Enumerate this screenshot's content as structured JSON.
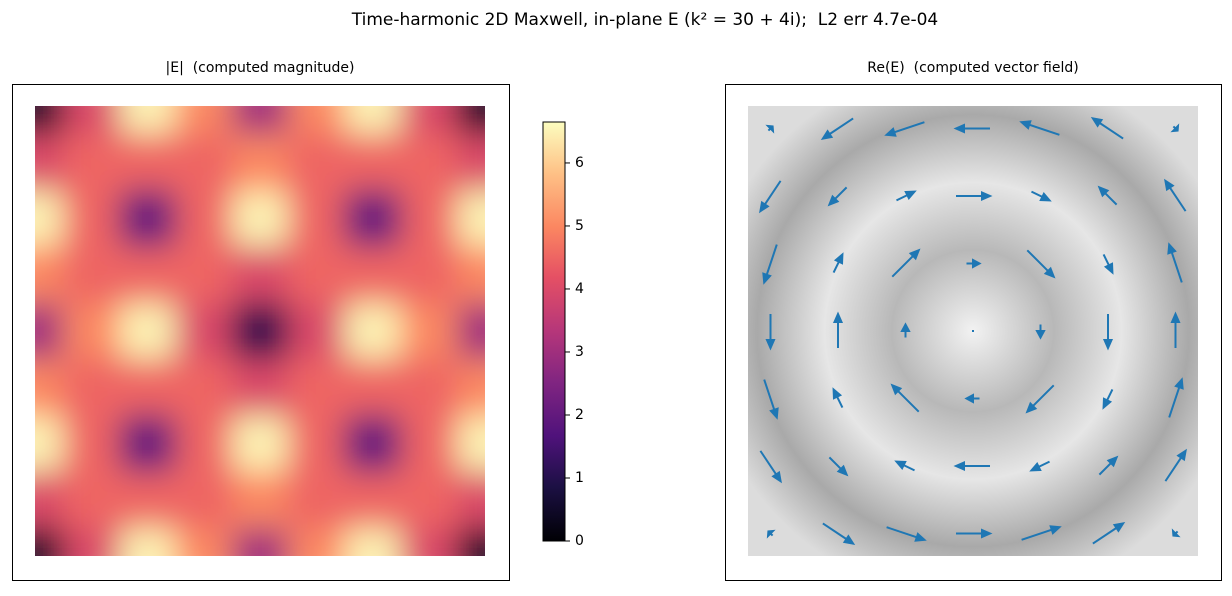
{
  "title": "Time-harmonic 2D Maxwell, in-plane E (k² = 30 + 4i);  L2 err 4.7e-04",
  "chart_data": [
    {
      "type": "heatmap",
      "title": "|E|  (computed magnitude)",
      "colormap": "magma",
      "clim": [
        0,
        6.65
      ],
      "cticks": [
        0,
        1,
        2,
        3,
        4,
        5,
        6
      ],
      "values": [
        [
          0.5,
          4,
          6.5,
          5,
          3,
          5,
          6.5,
          4,
          0.5
        ],
        [
          4,
          4.5,
          4.5,
          4.5,
          5,
          4.5,
          4.5,
          4.5,
          4
        ],
        [
          6.5,
          4.5,
          2,
          4.5,
          6.5,
          4.5,
          2,
          4.5,
          6.5
        ],
        [
          5,
          4.5,
          4.5,
          4.5,
          4,
          4.5,
          4.5,
          4.5,
          5
        ],
        [
          3,
          5,
          6.5,
          4,
          1,
          4,
          6.5,
          5,
          3
        ],
        [
          5,
          4.5,
          4.5,
          4.5,
          4,
          4.5,
          4.5,
          4.5,
          5
        ],
        [
          6.5,
          4.5,
          2,
          4.5,
          6.5,
          4.5,
          2,
          4.5,
          6.5
        ],
        [
          4,
          4.5,
          4.5,
          4.5,
          5,
          4.5,
          4.5,
          4.5,
          4
        ],
        [
          0.5,
          4,
          6.5,
          5,
          3,
          5,
          6.5,
          4,
          0.5
        ]
      ]
    },
    {
      "type": "quiver",
      "title": "Re(E)  (computed vector field)",
      "color": "#1f77b4",
      "xlim": [
        0,
        1
      ],
      "ylim": [
        0,
        1
      ],
      "x": [
        0.05,
        0.2,
        0.35,
        0.5,
        0.65,
        0.8,
        0.95,
        0.05,
        0.2,
        0.35,
        0.5,
        0.65,
        0.8,
        0.95,
        0.05,
        0.2,
        0.35,
        0.5,
        0.65,
        0.8,
        0.95,
        0.05,
        0.2,
        0.35,
        0.5,
        0.65,
        0.8,
        0.95,
        0.05,
        0.2,
        0.35,
        0.5,
        0.65,
        0.8,
        0.95,
        0.05,
        0.2,
        0.35,
        0.5,
        0.65,
        0.8,
        0.95,
        0.05,
        0.2,
        0.35,
        0.5,
        0.65,
        0.8,
        0.95
      ],
      "y": [
        0.95,
        0.95,
        0.95,
        0.95,
        0.95,
        0.95,
        0.95,
        0.8,
        0.8,
        0.8,
        0.8,
        0.8,
        0.8,
        0.8,
        0.65,
        0.65,
        0.65,
        0.65,
        0.65,
        0.65,
        0.65,
        0.5,
        0.5,
        0.5,
        0.5,
        0.5,
        0.5,
        0.5,
        0.35,
        0.35,
        0.35,
        0.35,
        0.35,
        0.35,
        0.35,
        0.2,
        0.2,
        0.2,
        0.2,
        0.2,
        0.2,
        0.2,
        0.05,
        0.05,
        0.05,
        0.05,
        0.05,
        0.05,
        0.05
      ],
      "u": [
        0.1,
        -0.72,
        -0.9,
        -0.81,
        -0.9,
        -0.72,
        0.1,
        -0.48,
        -0.41,
        0.43,
        0.81,
        0.43,
        -0.41,
        -0.48,
        -0.3,
        0.21,
        0.63,
        0.31,
        0.63,
        0.21,
        -0.3,
        0,
        0,
        0,
        0,
        0,
        0,
        0,
        0.3,
        -0.21,
        -0.63,
        -0.31,
        -0.63,
        -0.21,
        0.3,
        0.48,
        0.41,
        -0.43,
        -0.81,
        -0.43,
        0.41,
        0.48,
        -0.1,
        0.72,
        0.9,
        0.81,
        0.9,
        0.72,
        -0.1
      ],
      "v": [
        0.1,
        -0.48,
        -0.3,
        0,
        0.3,
        0.48,
        -0.1,
        -0.72,
        -0.41,
        0.21,
        0,
        -0.21,
        0.41,
        0.72,
        -0.9,
        0.43,
        0.63,
        0,
        -0.63,
        -0.43,
        0.9,
        -0.81,
        0.81,
        0.31,
        0,
        -0.31,
        -0.81,
        0.81,
        -0.9,
        0.43,
        0.63,
        0,
        -0.63,
        -0.43,
        0.9,
        -0.72,
        -0.41,
        0.21,
        0,
        -0.21,
        0.41,
        0.72,
        0.1,
        -0.48,
        -0.3,
        0,
        0.3,
        0.48,
        -0.1
      ]
    }
  ]
}
